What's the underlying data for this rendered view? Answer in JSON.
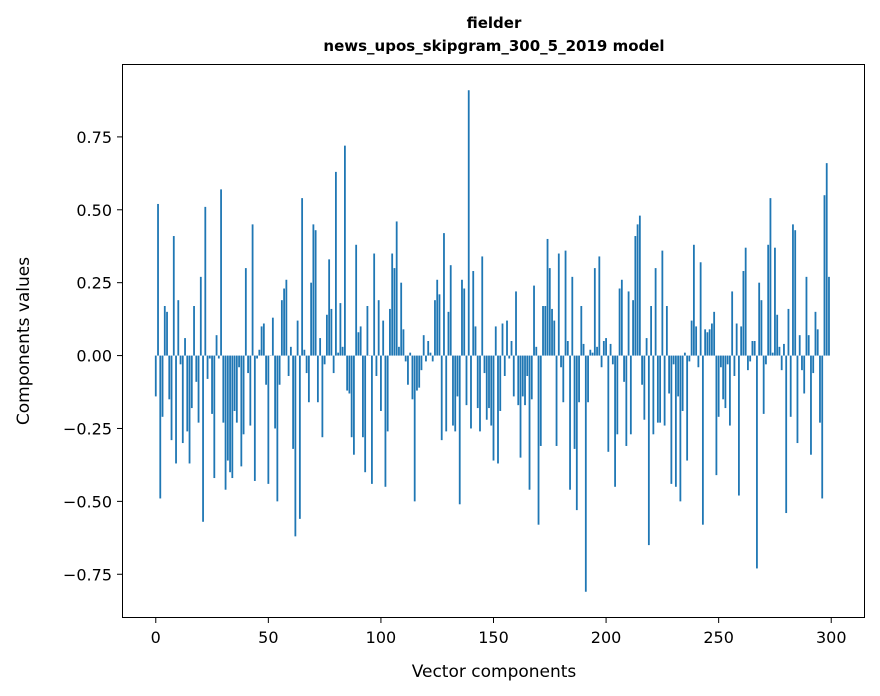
{
  "chart_data": {
    "type": "bar",
    "title": "fielder",
    "subtitle": "news_upos_skipgram_300_5_2019 model",
    "xlabel": "Vector components",
    "ylabel": "Components values",
    "xlim": [
      -15,
      315
    ],
    "ylim": [
      -0.9,
      1.0
    ],
    "xticks": [
      0,
      50,
      100,
      150,
      200,
      250,
      300
    ],
    "yticks": [
      -0.75,
      -0.5,
      -0.25,
      0.0,
      0.25,
      0.5,
      0.75
    ],
    "ytick_labels": [
      "−0.75",
      "−0.50",
      "−0.25",
      "0.00",
      "0.25",
      "0.50",
      "0.75"
    ],
    "grid": false,
    "color": "#1f77b4",
    "values": [
      -0.14,
      0.52,
      -0.49,
      -0.21,
      0.17,
      0.15,
      -0.15,
      -0.29,
      0.41,
      -0.37,
      0.19,
      -0.03,
      -0.3,
      0.06,
      -0.26,
      -0.37,
      -0.18,
      0.17,
      -0.09,
      -0.23,
      0.27,
      -0.57,
      0.51,
      -0.08,
      -0.01,
      -0.2,
      -0.42,
      0.07,
      -0.01,
      0.57,
      -0.23,
      -0.46,
      -0.36,
      -0.4,
      -0.42,
      -0.19,
      -0.23,
      -0.04,
      -0.38,
      -0.27,
      0.3,
      -0.06,
      -0.24,
      0.45,
      -0.43,
      -0.01,
      0.02,
      0.1,
      0.11,
      -0.1,
      -0.44,
      0.0,
      0.13,
      -0.25,
      -0.5,
      -0.1,
      0.19,
      0.23,
      0.26,
      -0.07,
      0.03,
      -0.32,
      -0.62,
      0.12,
      -0.56,
      0.54,
      0.02,
      -0.06,
      -0.16,
      0.25,
      0.45,
      0.43,
      -0.16,
      0.06,
      -0.28,
      -0.03,
      0.14,
      0.33,
      0.16,
      -0.06,
      0.63,
      0.01,
      0.18,
      0.03,
      0.72,
      -0.12,
      -0.13,
      -0.28,
      -0.34,
      0.38,
      0.08,
      0.1,
      -0.28,
      -0.4,
      0.17,
      0.0,
      -0.44,
      0.35,
      -0.07,
      0.19,
      -0.19,
      0.12,
      -0.45,
      -0.26,
      0.16,
      0.35,
      0.3,
      0.46,
      0.03,
      0.25,
      0.09,
      -0.02,
      -0.1,
      0.01,
      -0.15,
      -0.5,
      -0.12,
      -0.11,
      -0.05,
      0.07,
      -0.02,
      0.05,
      0.01,
      -0.02,
      0.19,
      0.26,
      0.21,
      -0.29,
      0.42,
      -0.26,
      0.15,
      0.31,
      -0.24,
      -0.26,
      -0.14,
      -0.51,
      0.26,
      0.23,
      -0.17,
      0.91,
      -0.25,
      0.29,
      0.1,
      -0.18,
      -0.26,
      0.34,
      -0.06,
      -0.22,
      -0.18,
      -0.24,
      -0.36,
      0.1,
      -0.37,
      -0.19,
      0.11,
      -0.07,
      0.12,
      -0.01,
      0.05,
      -0.14,
      0.22,
      -0.17,
      -0.35,
      -0.14,
      -0.17,
      -0.07,
      -0.46,
      -0.15,
      0.24,
      0.03,
      -0.58,
      -0.31,
      0.17,
      0.17,
      0.4,
      0.3,
      0.16,
      0.12,
      -0.31,
      0.35,
      -0.04,
      -0.16,
      0.36,
      0.05,
      -0.46,
      0.27,
      -0.32,
      -0.53,
      -0.16,
      0.17,
      0.04,
      -0.81,
      -0.16,
      0.02,
      0.01,
      0.3,
      0.03,
      0.34,
      -0.04,
      0.05,
      0.06,
      -0.33,
      0.04,
      -0.03,
      -0.45,
      -0.27,
      0.23,
      0.26,
      -0.09,
      -0.31,
      0.22,
      -0.27,
      0.19,
      0.41,
      0.45,
      0.48,
      -0.1,
      -0.22,
      0.06,
      -0.65,
      0.17,
      -0.27,
      0.3,
      -0.23,
      -0.23,
      0.36,
      -0.24,
      0.17,
      -0.13,
      -0.44,
      -0.03,
      -0.45,
      -0.14,
      -0.5,
      -0.19,
      0.01,
      -0.36,
      -0.02,
      0.12,
      0.38,
      0.1,
      -0.04,
      0.32,
      -0.58,
      0.09,
      0.08,
      0.09,
      0.11,
      0.15,
      -0.41,
      -0.21,
      -0.04,
      -0.15,
      -0.18,
      -0.03,
      -0.24,
      0.22,
      -0.07,
      0.11,
      -0.48,
      0.1,
      0.29,
      0.37,
      -0.05,
      -0.02,
      0.05,
      0.05,
      -0.73,
      0.25,
      0.19,
      -0.2,
      -0.03,
      0.38,
      0.54,
      0.01,
      0.37,
      0.14,
      0.03,
      -0.05,
      0.04,
      -0.54,
      0.16,
      -0.21,
      0.45,
      0.43,
      -0.3,
      0.07,
      -0.05,
      -0.13,
      0.27,
      0.07,
      -0.34,
      -0.06,
      0.15,
      0.09,
      -0.23,
      -0.49,
      0.55,
      0.66,
      0.27
    ]
  }
}
